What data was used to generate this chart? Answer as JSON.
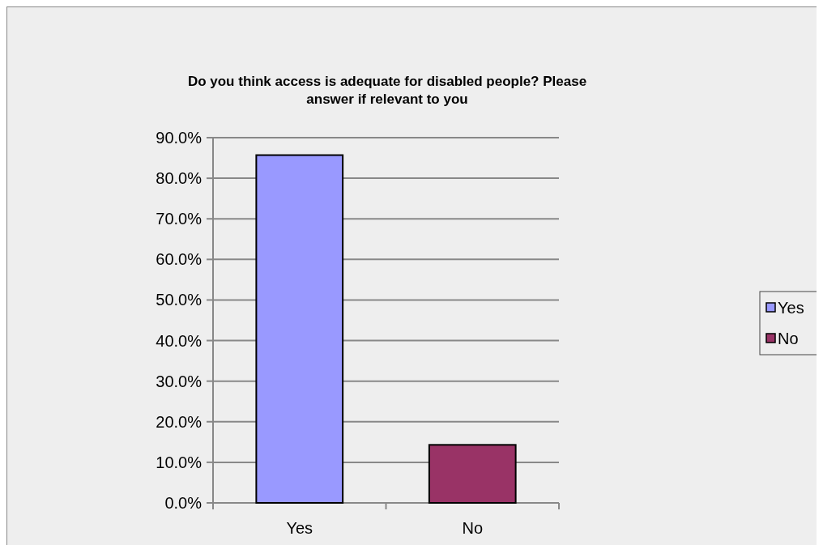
{
  "chart_data": {
    "type": "bar",
    "title": "Do you think access is adequate for disabled people? Please answer if relevant to you",
    "categories": [
      "Yes",
      "No"
    ],
    "stacked": true,
    "series": [
      {
        "name": "Yes",
        "color": "#9999ff",
        "values": [
          85.7,
          null
        ]
      },
      {
        "name": "No",
        "color": "#993366",
        "values": [
          null,
          14.3
        ]
      }
    ],
    "ylim": [
      0,
      90
    ],
    "yticks": [
      {
        "value": 0,
        "label": "0.0%"
      },
      {
        "value": 10,
        "label": "10.0%"
      },
      {
        "value": 20,
        "label": "20.0%"
      },
      {
        "value": 30,
        "label": "30.0%"
      },
      {
        "value": 40,
        "label": "40.0%"
      },
      {
        "value": 50,
        "label": "50.0%"
      },
      {
        "value": 60,
        "label": "60.0%"
      },
      {
        "value": 70,
        "label": "70.0%"
      },
      {
        "value": 80,
        "label": "80.0%"
      },
      {
        "value": 90,
        "label": "90.0%"
      }
    ],
    "grid": "y",
    "legend": "right"
  }
}
